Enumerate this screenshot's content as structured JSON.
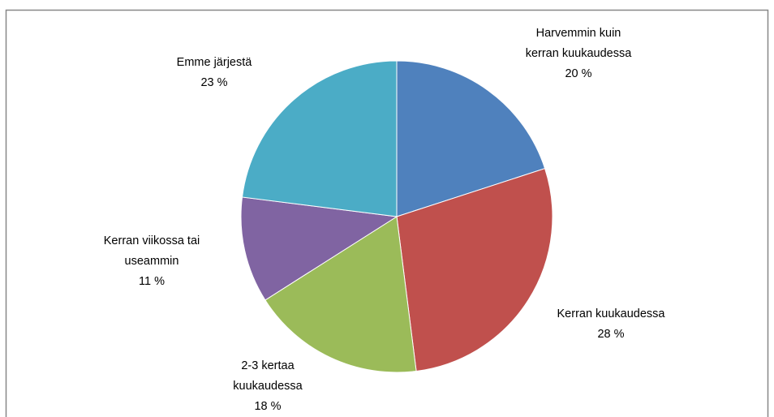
{
  "chart_data": {
    "type": "pie",
    "categories": [
      "Harvemmin kuin kerran kuukaudessa",
      "Kerran kuukaudessa",
      "2-3 kertaa kuukaudessa",
      "Kerran viikossa tai useammin",
      "Emme järjestä"
    ],
    "values": [
      20,
      28,
      18,
      11,
      23
    ],
    "value_labels": [
      "20 %",
      "28 %",
      "18 %",
      "11 %",
      "23 %"
    ],
    "colors": [
      "#4f81bd",
      "#c0504d",
      "#9bbb59",
      "#8064a2",
      "#4bacc6"
    ]
  }
}
